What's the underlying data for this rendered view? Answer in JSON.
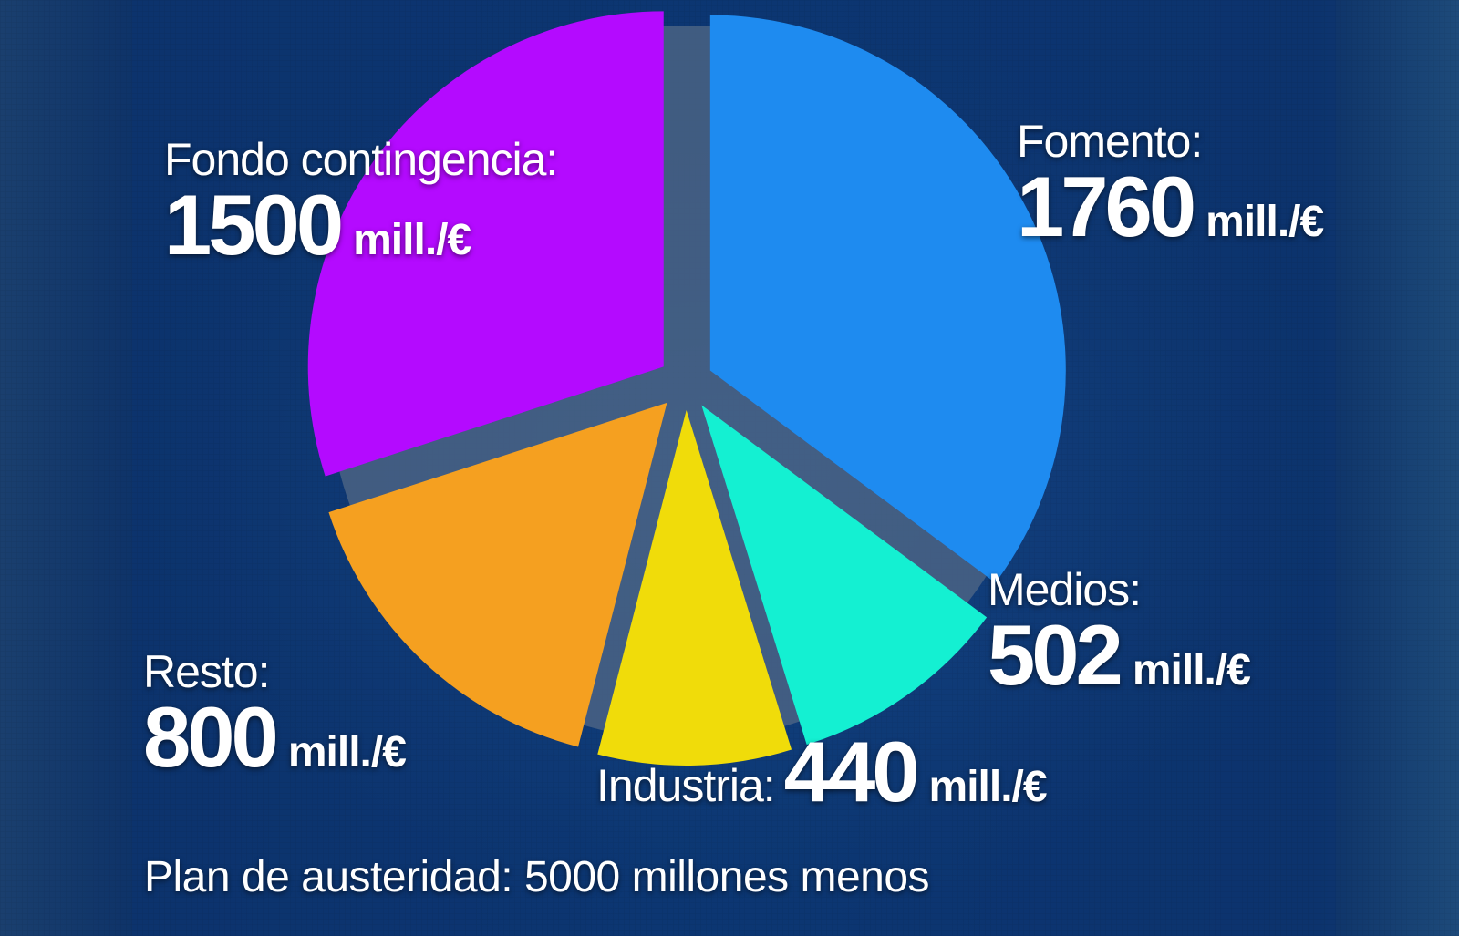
{
  "chart_data": {
    "type": "pie",
    "unit": "mill./€",
    "slices": [
      {
        "label": "Fomento:",
        "value": 1760,
        "value_text": "1760",
        "color": "#1e8bf0"
      },
      {
        "label": "Medios:",
        "value": 502,
        "value_text": "502",
        "color": "#14f0d2"
      },
      {
        "label": "Industria:",
        "value": 440,
        "value_text": "440",
        "color": "#f0dc0a"
      },
      {
        "label": "Resto:",
        "value": 800,
        "value_text": "800",
        "color": "#f5a020"
      },
      {
        "label": "Fondo contingencia:",
        "value": 1500,
        "value_text": "1500",
        "color": "#b40aff"
      }
    ],
    "footer": "Plan de austeridad: 5000 millones menos"
  },
  "colors": {
    "background": "#0a2a5c",
    "panel": "#0d3670",
    "pie_base": "#4a6384"
  }
}
